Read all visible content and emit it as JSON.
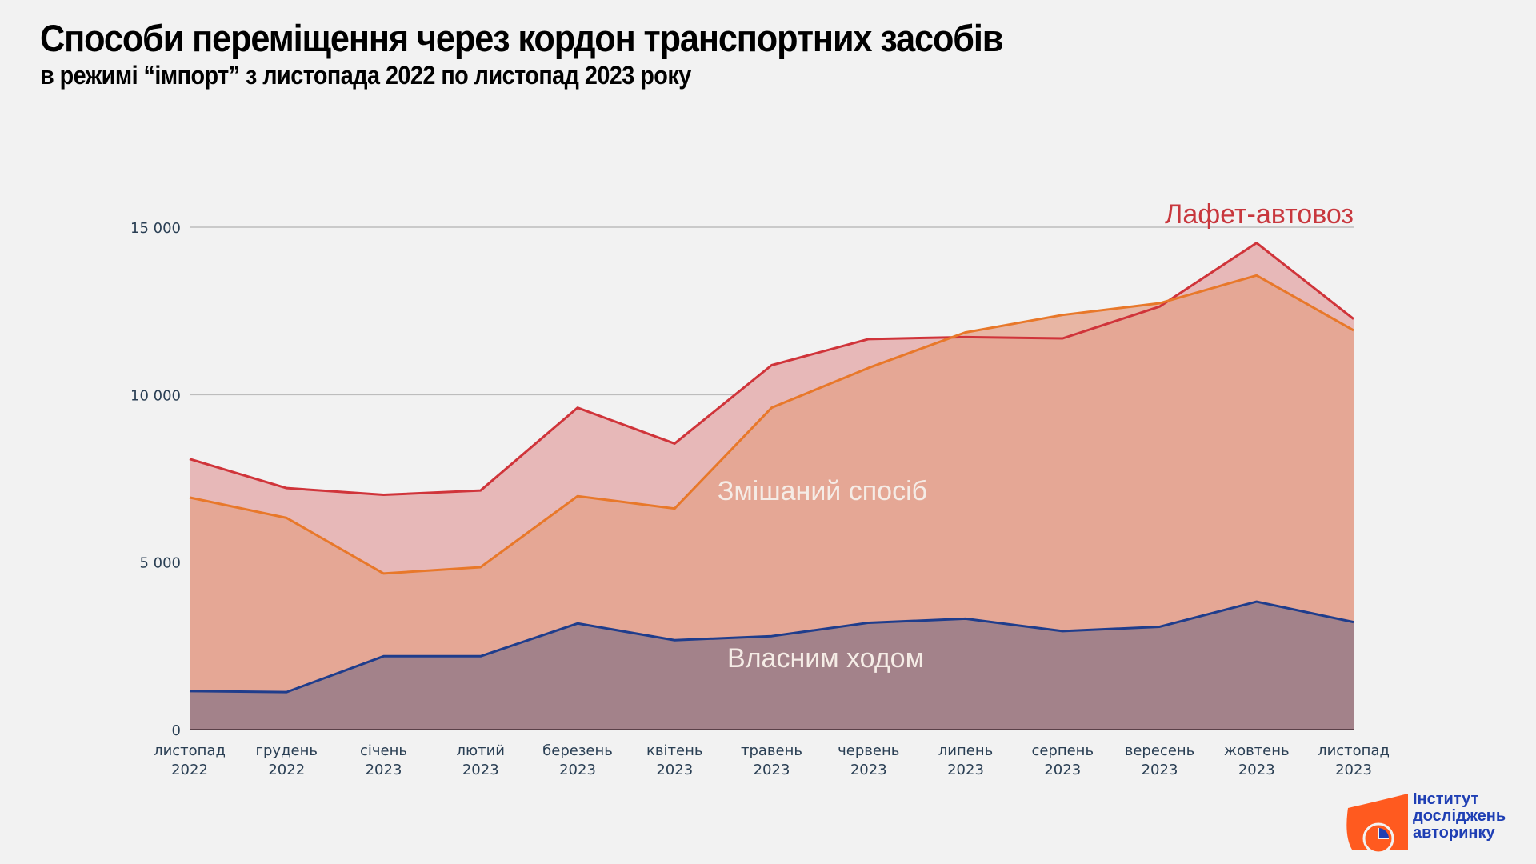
{
  "header": {
    "title": "Способи переміщення через кордон транспортних засобів",
    "subtitle": "в режимі “імпорт” з листопада 2022 по листопад 2023 року"
  },
  "chart_data": {
    "type": "area",
    "title": "Способи переміщення через кордон транспортних засобів",
    "subtitle": "в режимі “імпорт” з листопада 2022 по листопад 2023 року",
    "xlabel": "",
    "ylabel": "",
    "ylim": [
      0,
      15000
    ],
    "yticks": [
      0,
      5000,
      10000,
      15000
    ],
    "ytick_labels": [
      "0",
      "5 000",
      "10 000",
      "15 000"
    ],
    "grid": true,
    "categories": [
      {
        "month": "листопад",
        "year": "2022"
      },
      {
        "month": "грудень",
        "year": "2022"
      },
      {
        "month": "січень",
        "year": "2023"
      },
      {
        "month": "лютий",
        "year": "2023"
      },
      {
        "month": "березень",
        "year": "2023"
      },
      {
        "month": "квітень",
        "year": "2023"
      },
      {
        "month": "травень",
        "year": "2023"
      },
      {
        "month": "червень",
        "year": "2023"
      },
      {
        "month": "липень",
        "year": "2023"
      },
      {
        "month": "серпень",
        "year": "2023"
      },
      {
        "month": "вересень",
        "year": "2023"
      },
      {
        "month": "жовтень",
        "year": "2023"
      },
      {
        "month": "листопад",
        "year": "2023"
      }
    ],
    "series": [
      {
        "name": "Змішаний спосіб",
        "line_color": "#e8782a",
        "fill_color": "#e4a28a",
        "values": [
          6930,
          6320,
          4660,
          4850,
          6970,
          6600,
          9610,
          10800,
          11860,
          12380,
          12730,
          13560,
          11920
        ]
      },
      {
        "name": "Лафет-автовоз",
        "line_color": "#d0343a",
        "fill_color": "#e7b8b8",
        "values": [
          8080,
          7210,
          7010,
          7140,
          9610,
          8540,
          10880,
          11660,
          11720,
          11680,
          12630,
          14530,
          12260
        ]
      },
      {
        "name": "Власним ходом",
        "line_color": "#1f3d8c",
        "fill_color": "#a3828a",
        "values": [
          1150,
          1120,
          2190,
          2190,
          3170,
          2670,
          2790,
          3190,
          3310,
          2940,
          3070,
          3820,
          3210
        ]
      }
    ],
    "annotations": [
      {
        "text": "Лафет-автовоз",
        "series": "Лафет-автовоз",
        "color": "#c8373d"
      },
      {
        "text": "Змішаний спосіб",
        "series": "Змішаний спосіб",
        "color": "#f5ece6"
      },
      {
        "text": "Власним ходом",
        "series": "Власним ходом",
        "color": "#f5ece6"
      }
    ],
    "legend": "none"
  },
  "logo": {
    "lines": [
      "Інститут",
      "досліджень",
      "авторинку"
    ],
    "accent": "#ff5a1f",
    "text_color": "#1f3fb4"
  }
}
